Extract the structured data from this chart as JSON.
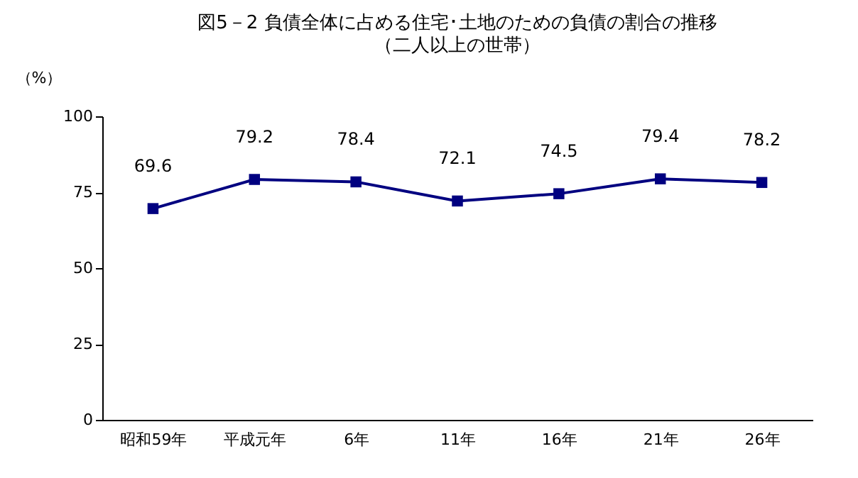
{
  "chart_data": {
    "type": "line",
    "title": "図5－2 負債全体に占める住宅･土地のための負債の割合の推移",
    "subtitle": "（二人以上の世帯）",
    "ylabel": "（%）",
    "categories": [
      "昭和59年",
      "平成元年",
      "6年",
      "11年",
      "16年",
      "21年",
      "26年"
    ],
    "series": [
      {
        "color": "#000080",
        "values": [
          69.6,
          79.2,
          78.4,
          72.1,
          74.5,
          79.4,
          78.2
        ]
      }
    ],
    "ylim": [
      0,
      100
    ],
    "yticks": [
      0,
      25,
      50,
      75,
      100
    ],
    "grid": false,
    "legend": false,
    "marker": "square",
    "line_style": "solid",
    "data_labels": true
  }
}
